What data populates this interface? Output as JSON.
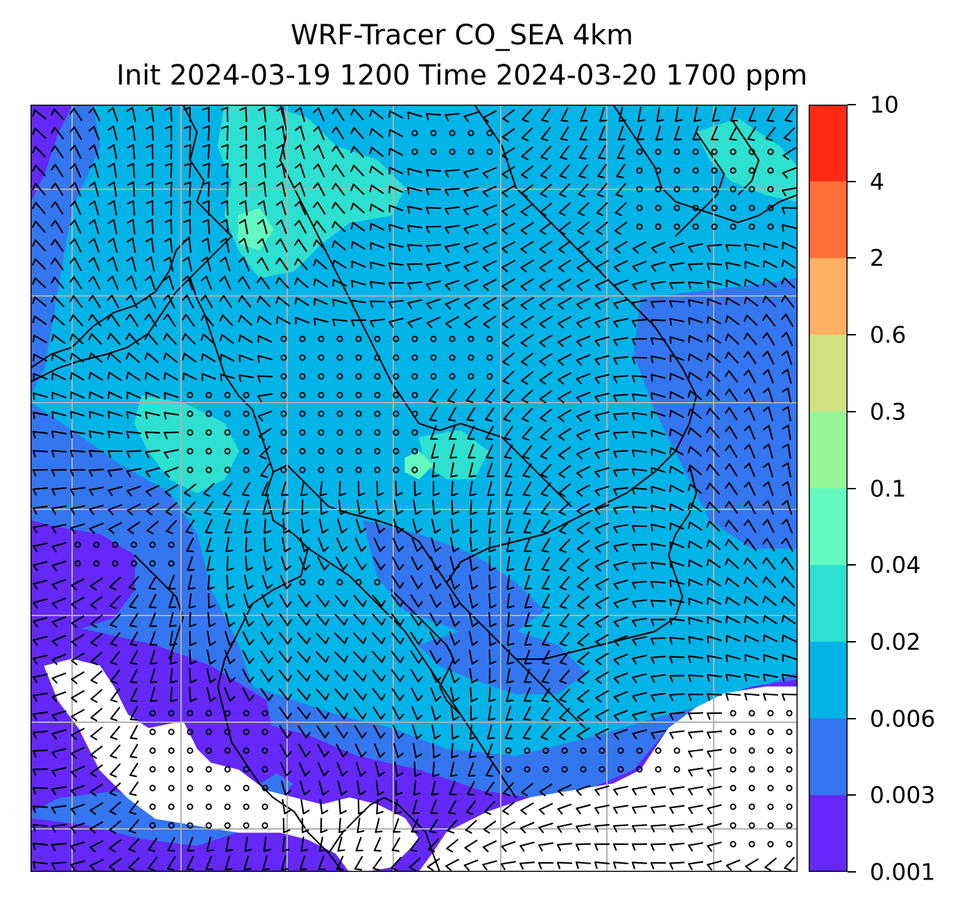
{
  "title": {
    "line1": "WRF-Tracer CO_SEA 4km",
    "line2": "Init 2024-03-19 1200 Time 2024-03-20 1700 ppm"
  },
  "colorbar": {
    "ticks": [
      "10",
      "4",
      "2",
      "0.6",
      "0.3",
      "0.1",
      "0.04",
      "0.02",
      "0.006",
      "0.003",
      "0.001"
    ],
    "colors": [
      "#ff2a14",
      "#ff7038",
      "#ffb060",
      "#d2e082",
      "#96f596",
      "#62fac0",
      "#2ee0d0",
      "#00b4e8",
      "#3476f0",
      "#6428f8"
    ]
  },
  "map_colors": {
    "below_min": "#ffffff",
    "level_1": "#6428f8",
    "level_2": "#3476f0",
    "level_3": "#00b4e8",
    "level_4": "#2ee0d0",
    "level_5": "#62fac0",
    "coast": "#000000",
    "grid": "#b0b0b0"
  }
}
